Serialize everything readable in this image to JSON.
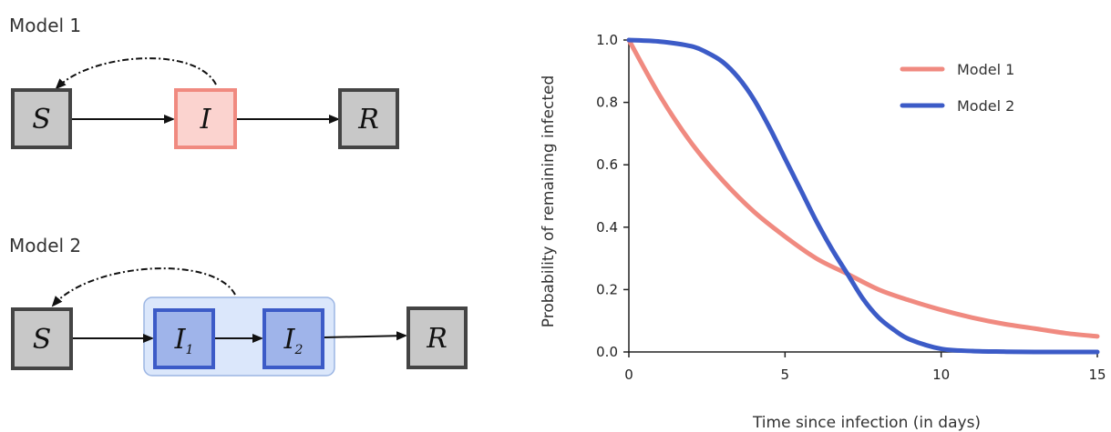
{
  "diagram": {
    "model1": {
      "title": "Model 1",
      "nodes": [
        {
          "id": "S",
          "label": "S"
        },
        {
          "id": "I",
          "label": "I"
        },
        {
          "id": "R",
          "label": "R"
        }
      ]
    },
    "model2": {
      "title": "Model 2",
      "nodes": [
        {
          "id": "S",
          "label": "S"
        },
        {
          "id": "I1",
          "label": "I",
          "sub": "1"
        },
        {
          "id": "I2",
          "label": "I",
          "sub": "2"
        },
        {
          "id": "R",
          "label": "R"
        }
      ]
    }
  },
  "colors": {
    "model1": "#f08a80",
    "model2": "#3c5bc7",
    "node_fill_grey": "#c8c8c8",
    "node_stroke_grey": "#444444",
    "I_fill": "#fbd3cf",
    "I12_fill": "#9fb4ea",
    "group_fill": "#dbe7fb",
    "group_stroke": "#9bb5e3"
  },
  "chart_data": {
    "type": "line",
    "xlabel": "Time since infection (in days)",
    "ylabel": "Probability of remaining infected",
    "xlim": [
      0,
      15
    ],
    "ylim": [
      0,
      1.0
    ],
    "xticks": [
      "0",
      "5",
      "10",
      "15"
    ],
    "yticks": [
      "0.0",
      "0.2",
      "0.4",
      "0.6",
      "0.8",
      "1.0"
    ],
    "legend_position": "top-right",
    "series": [
      {
        "name": "Model 1",
        "color": "#f08a80",
        "x": [
          0,
          1,
          2,
          3,
          4,
          5,
          6,
          7,
          8,
          9,
          10,
          11,
          12,
          13,
          14,
          15
        ],
        "y": [
          1.0,
          0.82,
          0.67,
          0.55,
          0.45,
          0.37,
          0.3,
          0.25,
          0.2,
          0.165,
          0.135,
          0.11,
          0.09,
          0.075,
          0.06,
          0.05
        ]
      },
      {
        "name": "Model 2",
        "color": "#3c5bc7",
        "x": [
          0,
          1,
          2,
          2.5,
          3,
          3.5,
          4,
          4.5,
          5,
          5.5,
          6,
          6.5,
          7,
          7.5,
          8,
          8.5,
          9,
          10,
          11,
          12,
          13,
          14,
          15
        ],
        "y": [
          1.0,
          0.995,
          0.98,
          0.96,
          0.93,
          0.88,
          0.81,
          0.72,
          0.62,
          0.52,
          0.42,
          0.33,
          0.25,
          0.17,
          0.11,
          0.07,
          0.04,
          0.01,
          0.003,
          0.001,
          0.0,
          0.0,
          0.0
        ]
      }
    ]
  }
}
